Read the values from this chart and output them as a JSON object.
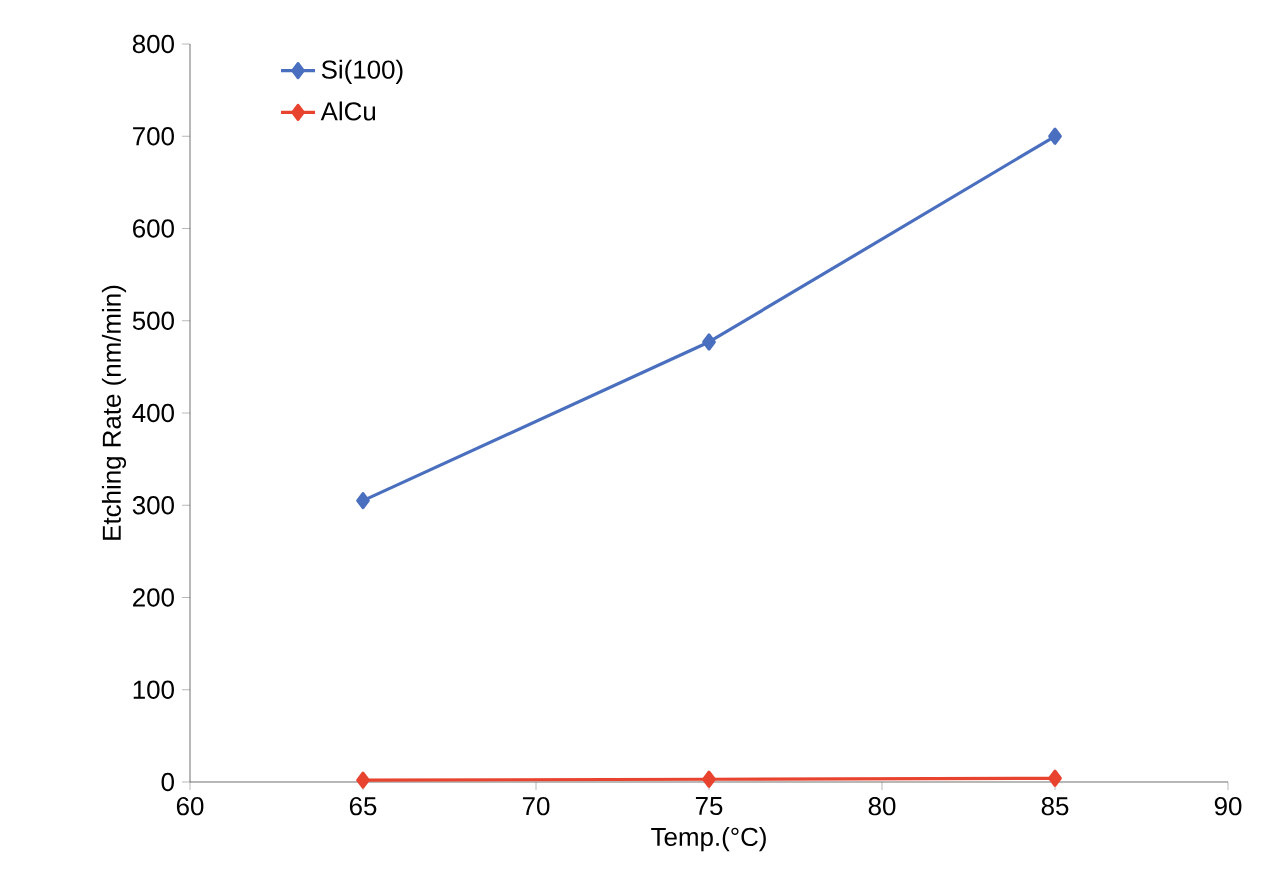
{
  "chart_data": {
    "type": "line",
    "xlabel": "Temp.(°C)",
    "ylabel": "Etching Rate (nm/min)",
    "x": [
      65,
      75,
      85
    ],
    "series": [
      {
        "name": "Si(100)",
        "color": "#4a6fbf",
        "values": [
          305,
          477,
          700
        ]
      },
      {
        "name": "AlCu",
        "color": "#e8432e",
        "values": [
          2,
          3,
          4
        ]
      }
    ],
    "xlim": [
      60,
      90
    ],
    "xticks": [
      60,
      65,
      70,
      75,
      80,
      85,
      90
    ],
    "ylim": [
      0,
      800
    ],
    "yticks": [
      0,
      100,
      200,
      300,
      400,
      500,
      600,
      700,
      800
    ],
    "legend": "top left",
    "marker": "diamond",
    "line_style": "solid",
    "grid": false
  }
}
